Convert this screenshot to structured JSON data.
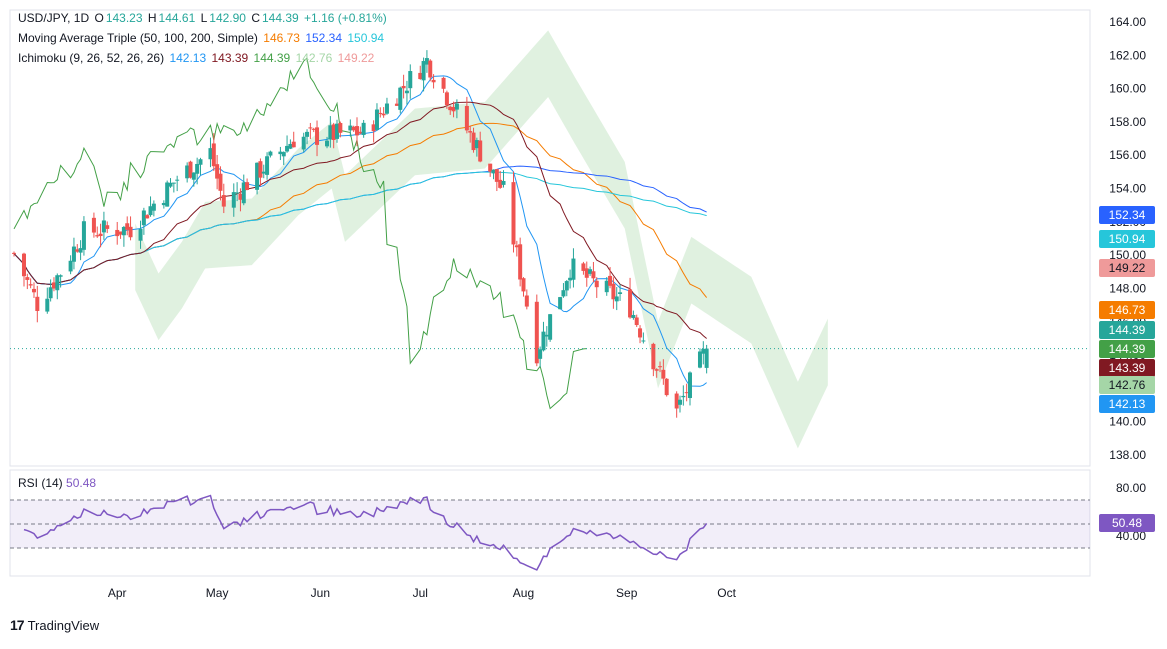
{
  "header": {
    "symbol": "USD/JPY, 1D",
    "o_label": "O",
    "o_value": "143.23",
    "h_label": "H",
    "h_value": "144.61",
    "l_label": "L",
    "l_value": "142.90",
    "c_label": "C",
    "c_value": "144.39",
    "change": "+1.16 (+0.81%)",
    "ma_label": "Moving Average Triple (50, 100, 200, Simple)",
    "ma_values": [
      "146.73",
      "152.34",
      "150.94"
    ],
    "ichi_label": "Ichimoku (9, 26, 52, 26, 26)",
    "ichi_values": [
      "142.13",
      "143.39",
      "144.39",
      "142.76",
      "149.22"
    ]
  },
  "rsi_header": {
    "label": "RSI (14)",
    "value": "50.48"
  },
  "footer": {
    "brand": "TradingView",
    "logo": "17"
  },
  "colors": {
    "up": "#26a69a",
    "down": "#ef5350",
    "ma50": "#f57c00",
    "ma100": "#2962ff",
    "ma200": "#26c6da",
    "tenkan": "#2196f3",
    "kijun": "#801922",
    "chikou": "#43a047",
    "span_a": "#a5d6a7",
    "span_b": "#ef9a9a",
    "rsi": "#7e57c2"
  },
  "chart_data": [
    {
      "type": "candlestick",
      "title": "USD/JPY, 1D",
      "ylim": [
        137,
        165
      ],
      "y_ticks": [
        "138.00",
        "140.00",
        "142.00",
        "144.00",
        "146.00",
        "148.00",
        "150.00",
        "152.00",
        "154.00",
        "156.00",
        "158.00",
        "160.00",
        "162.00",
        "164.00"
      ],
      "x_ticks": [
        "Apr",
        "May",
        "Jun",
        "Jul",
        "Aug",
        "Sep",
        "Oct"
      ],
      "price_tags": [
        {
          "label": "152.34",
          "color": "#2962ff"
        },
        {
          "label": "150.94",
          "color": "#26c6da"
        },
        {
          "label": "149.22",
          "color": "#ef9a9a"
        },
        {
          "label": "146.73",
          "color": "#f57c00"
        },
        {
          "label": "144.39",
          "color": "#26a69a"
        },
        {
          "label": "144.39",
          "color": "#43a047"
        },
        {
          "label": "143.39",
          "color": "#801922"
        },
        {
          "label": "142.76",
          "color": "#a5d6a7"
        },
        {
          "label": "142.13",
          "color": "#2196f3"
        }
      ],
      "last_close": 144.39,
      "candles_anchor": [
        {
          "date": "2024-03-01",
          "close": 150.1
        },
        {
          "date": "2024-03-08",
          "close": 147.1
        },
        {
          "date": "2024-03-15",
          "close": 149.0
        },
        {
          "date": "2024-03-22",
          "close": 151.4
        },
        {
          "date": "2024-04-05",
          "close": 151.6
        },
        {
          "date": "2024-04-19",
          "close": 154.6
        },
        {
          "date": "2024-04-29",
          "close": 156.2
        },
        {
          "date": "2024-05-03",
          "close": 153.0
        },
        {
          "date": "2024-05-24",
          "close": 157.0
        },
        {
          "date": "2024-06-14",
          "close": 157.4
        },
        {
          "date": "2024-07-03",
          "close": 161.7
        },
        {
          "date": "2024-07-11",
          "close": 158.9
        },
        {
          "date": "2024-07-26",
          "close": 153.8
        },
        {
          "date": "2024-08-05",
          "close": 144.2
        },
        {
          "date": "2024-08-15",
          "close": 149.3
        },
        {
          "date": "2024-09-02",
          "close": 146.9
        },
        {
          "date": "2024-09-16",
          "close": 140.6
        },
        {
          "date": "2024-09-25",
          "close": 144.39
        }
      ],
      "ma50_last": 146.73,
      "ma100_last": 152.34,
      "ma200_last": 150.94,
      "tenkan_last": 142.13,
      "kijun_last": 143.39,
      "chikou_last": 144.39,
      "span_a_last": 142.76,
      "span_b_last": 149.22
    },
    {
      "type": "line",
      "title": "RSI (14)",
      "ylim": [
        20,
        95
      ],
      "y_ticks": [
        "80.00",
        "40.00"
      ],
      "band": [
        30,
        70
      ],
      "last_value": 50.48,
      "value_tag": "50.48"
    }
  ]
}
